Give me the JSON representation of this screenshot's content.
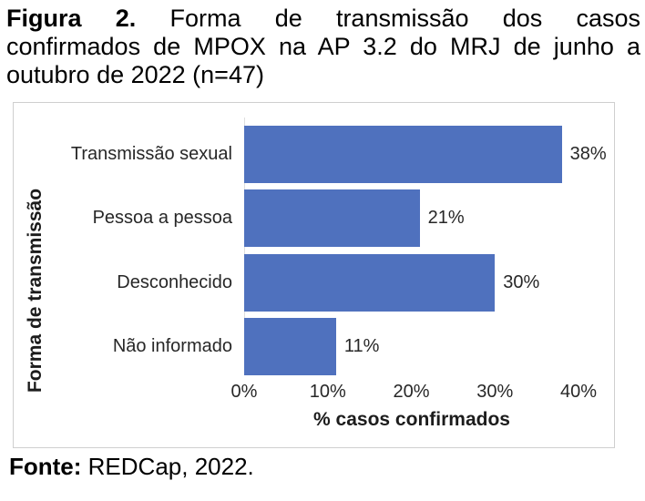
{
  "figure": {
    "title": {
      "label": "Figura 2.",
      "line1_rest": "Forma de transmissão dos casos",
      "line2": "confirmados de MPOX na AP 3.2 do MRJ de junho a",
      "line3": "outubro de 2022 (n=47)"
    },
    "source": {
      "label": "Fonte:",
      "text": "REDCap, 2022."
    }
  },
  "chart_data": {
    "type": "bar",
    "orientation": "horizontal",
    "title": "Forma de transmissão dos casos confirmados de MPOX na AP 3.2 do MRJ de junho a outubro de 2022 (n=47)",
    "categories": [
      "Transmissão sexual",
      "Pessoa a pessoa",
      "Desconhecido",
      "Não informado"
    ],
    "values": [
      38,
      21,
      30,
      11
    ],
    "value_labels": [
      "38%",
      "21%",
      "30%",
      "11%"
    ],
    "xlabel": "% casos confirmados",
    "ylabel": "Forma de transmissão",
    "x_ticks": [
      "0%",
      "10%",
      "20%",
      "30%",
      "40%"
    ],
    "xlim": [
      0,
      40
    ],
    "grid": false,
    "legend": false,
    "bar_color": "#4f71be"
  }
}
